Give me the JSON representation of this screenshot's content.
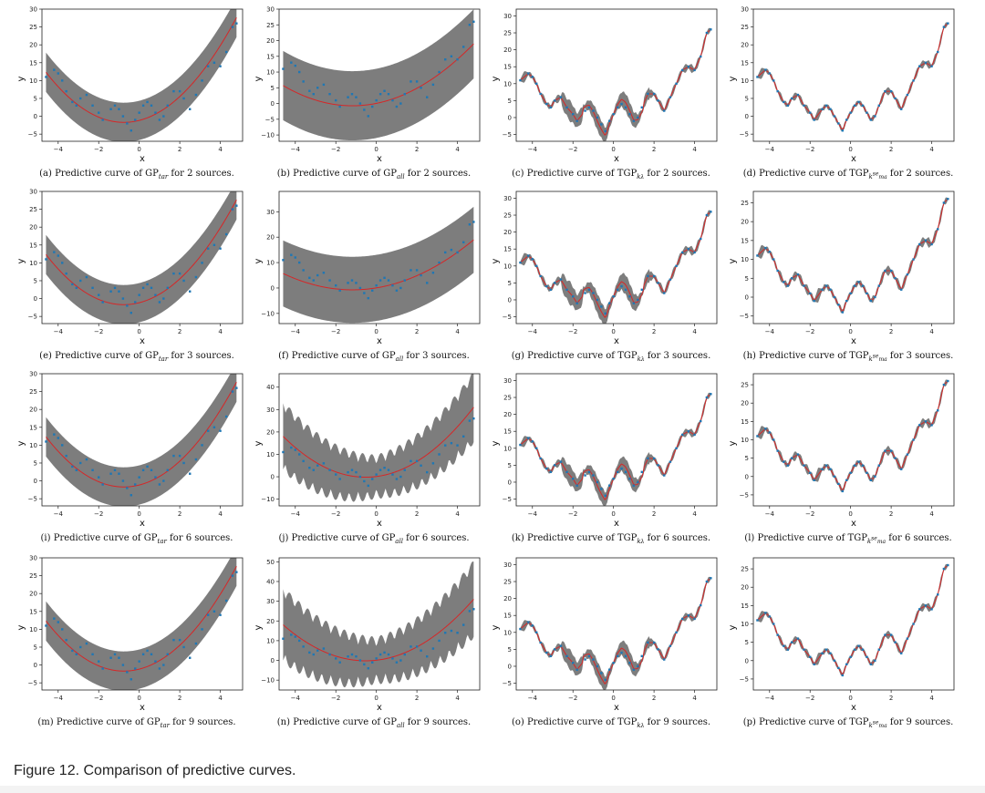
{
  "figure_caption": "Figure 12. Comparison of predictive curves.",
  "colors": {
    "band": "#6f6f6f",
    "mean": "#d62728",
    "points": "#1f77b4",
    "text": "#111111"
  },
  "chart_data": [
    {
      "id": "a",
      "type": "line",
      "caption": {
        "prefix": "(a) Predictive curve of GP",
        "sub": "tar",
        "sup": "",
        "suffix": " for 2 sources."
      },
      "xlabel": "x",
      "ylabel": "y",
      "xticks": [
        -4,
        -2,
        0,
        2,
        4
      ],
      "yticks": [
        -5,
        0,
        5,
        10,
        15,
        20,
        25,
        30
      ],
      "xlim": [
        -4.8,
        5.1
      ],
      "ylim": [
        -7,
        30
      ],
      "mean_model": "quad",
      "band": 5.5,
      "series": [
        {
          "name": "mean",
          "kind": "line"
        },
        {
          "name": "band",
          "kind": "area"
        },
        {
          "name": "data",
          "kind": "scatter"
        }
      ]
    },
    {
      "id": "b",
      "type": "line",
      "caption": {
        "prefix": "(b) Predictive curve of GP",
        "sub": "all",
        "sup": "",
        "suffix": " for 2 sources."
      },
      "xlabel": "x",
      "ylabel": "y",
      "xticks": [
        -4,
        -2,
        0,
        2,
        4
      ],
      "yticks": [
        -10,
        -5,
        0,
        5,
        10,
        15,
        20,
        25,
        30
      ],
      "xlim": [
        -4.8,
        5.1
      ],
      "ylim": [
        -12,
        30
      ],
      "mean_model": "quad_wide",
      "band": 11,
      "series": [
        {
          "name": "mean",
          "kind": "line"
        },
        {
          "name": "band",
          "kind": "area"
        },
        {
          "name": "data",
          "kind": "scatter"
        }
      ]
    },
    {
      "id": "c",
      "type": "line",
      "caption": {
        "prefix": "(c) Predictive curve of TGP",
        "sub": "k",
        "sup": "",
        "sub2": "λ",
        "suffix": " for 2 sources."
      },
      "xlabel": "x",
      "ylabel": "y",
      "xticks": [
        -4,
        -2,
        0,
        2,
        4
      ],
      "yticks": [
        -5,
        0,
        5,
        10,
        15,
        20,
        25,
        30
      ],
      "xlim": [
        -4.8,
        5.1
      ],
      "ylim": [
        -7,
        32
      ],
      "mean_model": "wiggle",
      "band": 2.5,
      "series": [
        {
          "name": "mean",
          "kind": "line"
        },
        {
          "name": "band",
          "kind": "area"
        },
        {
          "name": "data",
          "kind": "scatter"
        }
      ]
    },
    {
      "id": "d",
      "type": "line",
      "caption": {
        "prefix": "(d) Predictive curve of TGP",
        "sub": "k",
        "sup": "se",
        "sub2": "ma",
        "suffix": " for 2 sources."
      },
      "xlabel": "x",
      "ylabel": "y",
      "xticks": [
        -4,
        -2,
        0,
        2,
        4
      ],
      "yticks": [
        -5,
        0,
        5,
        10,
        15,
        20,
        25,
        30
      ],
      "xlim": [
        -4.8,
        5.1
      ],
      "ylim": [
        -7,
        30
      ],
      "mean_model": "fit",
      "band": 1.8,
      "series": [
        {
          "name": "mean",
          "kind": "line"
        },
        {
          "name": "band",
          "kind": "area"
        },
        {
          "name": "data",
          "kind": "scatter"
        }
      ]
    },
    {
      "id": "e",
      "type": "line",
      "caption": {
        "prefix": "(e) Predictive curve of GP",
        "sub": "tar",
        "sup": "",
        "suffix": " for 3 sources."
      },
      "xlabel": "x",
      "ylabel": "y",
      "xticks": [
        -4,
        -2,
        0,
        2,
        4
      ],
      "yticks": [
        -5,
        0,
        5,
        10,
        15,
        20,
        25,
        30
      ],
      "xlim": [
        -4.8,
        5.1
      ],
      "ylim": [
        -7,
        30
      ],
      "mean_model": "quad",
      "band": 5.5,
      "series": [
        {
          "name": "mean",
          "kind": "line"
        },
        {
          "name": "band",
          "kind": "area"
        },
        {
          "name": "data",
          "kind": "scatter"
        }
      ]
    },
    {
      "id": "f",
      "type": "line",
      "caption": {
        "prefix": "(f) Predictive curve of GP",
        "sub": "all",
        "sup": "",
        "suffix": " for 3 sources."
      },
      "xlabel": "x",
      "ylabel": "y",
      "xticks": [
        -4,
        -2,
        0,
        2,
        4
      ],
      "yticks": [
        -10,
        0,
        10,
        20,
        30
      ],
      "xlim": [
        -4.8,
        5.1
      ],
      "ylim": [
        -14,
        38
      ],
      "mean_model": "quad_wide",
      "band": 13,
      "series": [
        {
          "name": "mean",
          "kind": "line"
        },
        {
          "name": "band",
          "kind": "area"
        },
        {
          "name": "data",
          "kind": "scatter"
        }
      ]
    },
    {
      "id": "g",
      "type": "line",
      "caption": {
        "prefix": "(g) Predictive curve of TGP",
        "sub": "k",
        "sup": "",
        "sub2": "λ",
        "suffix": " for 3 sources."
      },
      "xlabel": "x",
      "ylabel": "y",
      "xticks": [
        -4,
        -2,
        0,
        2,
        4
      ],
      "yticks": [
        -5,
        0,
        5,
        10,
        15,
        20,
        25,
        30
      ],
      "xlim": [
        -4.8,
        5.1
      ],
      "ylim": [
        -7,
        32
      ],
      "mean_model": "wiggle",
      "band": 2.8,
      "series": [
        {
          "name": "mean",
          "kind": "line"
        },
        {
          "name": "band",
          "kind": "area"
        },
        {
          "name": "data",
          "kind": "scatter"
        }
      ]
    },
    {
      "id": "h",
      "type": "line",
      "caption": {
        "prefix": "(h) Predictive curve of TGP",
        "sub": "k",
        "sup": "se",
        "sub2": "ma",
        "suffix": " for 3 sources."
      },
      "xlabel": "x",
      "ylabel": "y",
      "xticks": [
        -4,
        -2,
        0,
        2,
        4
      ],
      "yticks": [
        -5,
        0,
        5,
        10,
        15,
        20,
        25
      ],
      "xlim": [
        -4.8,
        5.1
      ],
      "ylim": [
        -7,
        28
      ],
      "mean_model": "fit",
      "band": 2.2,
      "series": [
        {
          "name": "mean",
          "kind": "line"
        },
        {
          "name": "band",
          "kind": "area"
        },
        {
          "name": "data",
          "kind": "scatter"
        }
      ]
    },
    {
      "id": "i",
      "type": "line",
      "caption": {
        "prefix": "(i) Predictive curve of GP",
        "sub": "tar",
        "sup": "",
        "suffix": " for 6 sources."
      },
      "xlabel": "x",
      "ylabel": "y",
      "xticks": [
        -4,
        -2,
        0,
        2,
        4
      ],
      "yticks": [
        -5,
        0,
        5,
        10,
        15,
        20,
        25,
        30
      ],
      "xlim": [
        -4.8,
        5.1
      ],
      "ylim": [
        -7,
        30
      ],
      "mean_model": "quad",
      "band": 5.5,
      "series": [
        {
          "name": "mean",
          "kind": "line"
        },
        {
          "name": "band",
          "kind": "area"
        },
        {
          "name": "data",
          "kind": "scatter"
        }
      ]
    },
    {
      "id": "j",
      "type": "line",
      "caption": {
        "prefix": "(j) Predictive curve of GP",
        "sub": "all",
        "sup": "",
        "suffix": " for 6 sources."
      },
      "xlabel": "x",
      "ylabel": "y",
      "xticks": [
        -4,
        -2,
        0,
        2,
        4
      ],
      "yticks": [
        -10,
        0,
        10,
        20,
        30,
        40
      ],
      "xlim": [
        -4.8,
        5.1
      ],
      "ylim": [
        -13,
        46
      ],
      "mean_model": "quad_rough",
      "band": 9,
      "series": [
        {
          "name": "mean",
          "kind": "line"
        },
        {
          "name": "band",
          "kind": "area"
        },
        {
          "name": "data",
          "kind": "scatter"
        }
      ]
    },
    {
      "id": "k",
      "type": "line",
      "caption": {
        "prefix": "(k) Predictive curve of TGP",
        "sub": "k",
        "sup": "",
        "sub2": "λ",
        "suffix": " for 6 sources."
      },
      "xlabel": "x",
      "ylabel": "y",
      "xticks": [
        -4,
        -2,
        0,
        2,
        4
      ],
      "yticks": [
        -5,
        0,
        5,
        10,
        15,
        20,
        25,
        30
      ],
      "xlim": [
        -4.8,
        5.1
      ],
      "ylim": [
        -7,
        32
      ],
      "mean_model": "wiggle",
      "band": 2.4,
      "series": [
        {
          "name": "mean",
          "kind": "line"
        },
        {
          "name": "band",
          "kind": "area"
        },
        {
          "name": "data",
          "kind": "scatter"
        }
      ]
    },
    {
      "id": "l",
      "type": "line",
      "caption": {
        "prefix": "(l) Predictive curve of TGP",
        "sub": "k",
        "sup": "se",
        "sub2": "ma",
        "suffix": " for 6 sources."
      },
      "xlabel": "x",
      "ylabel": "y",
      "xticks": [
        -4,
        -2,
        0,
        2,
        4
      ],
      "yticks": [
        -5,
        0,
        5,
        10,
        15,
        20,
        25
      ],
      "xlim": [
        -4.8,
        5.1
      ],
      "ylim": [
        -8,
        28
      ],
      "mean_model": "fit",
      "band": 2.2,
      "series": [
        {
          "name": "mean",
          "kind": "line"
        },
        {
          "name": "band",
          "kind": "area"
        },
        {
          "name": "data",
          "kind": "scatter"
        }
      ]
    },
    {
      "id": "m",
      "type": "line",
      "caption": {
        "prefix": "(m) Predictive curve of GP",
        "sub": "tar",
        "sup": "",
        "suffix": " for 9 sources."
      },
      "xlabel": "x",
      "ylabel": "y",
      "xticks": [
        -4,
        -2,
        0,
        2,
        4
      ],
      "yticks": [
        -5,
        0,
        5,
        10,
        15,
        20,
        25,
        30
      ],
      "xlim": [
        -4.8,
        5.1
      ],
      "ylim": [
        -7,
        30
      ],
      "mean_model": "quad",
      "band": 5.5,
      "series": [
        {
          "name": "mean",
          "kind": "line"
        },
        {
          "name": "band",
          "kind": "area"
        },
        {
          "name": "data",
          "kind": "scatter"
        }
      ]
    },
    {
      "id": "n",
      "type": "line",
      "caption": {
        "prefix": "(n) Predictive curve of GP",
        "sub": "all",
        "sup": "",
        "suffix": " for 9 sources."
      },
      "xlabel": "x",
      "ylabel": "y",
      "xticks": [
        -4,
        -2,
        0,
        2,
        4
      ],
      "yticks": [
        -10,
        0,
        10,
        20,
        30,
        40,
        50
      ],
      "xlim": [
        -4.8,
        5.1
      ],
      "ylim": [
        -15,
        52
      ],
      "mean_model": "quad_rough",
      "band": 11,
      "series": [
        {
          "name": "mean",
          "kind": "line"
        },
        {
          "name": "band",
          "kind": "area"
        },
        {
          "name": "data",
          "kind": "scatter"
        }
      ]
    },
    {
      "id": "o",
      "type": "line",
      "caption": {
        "prefix": "(o) Predictive curve of TGP",
        "sub": "k",
        "sup": "",
        "sub2": "λ",
        "suffix": " for 9 sources."
      },
      "xlabel": "x",
      "ylabel": "y",
      "xticks": [
        -4,
        -2,
        0,
        2,
        4
      ],
      "yticks": [
        -5,
        0,
        5,
        10,
        15,
        20,
        25,
        30
      ],
      "xlim": [
        -4.8,
        5.1
      ],
      "ylim": [
        -7,
        32
      ],
      "mean_model": "wiggle",
      "band": 2.4,
      "series": [
        {
          "name": "mean",
          "kind": "line"
        },
        {
          "name": "band",
          "kind": "area"
        },
        {
          "name": "data",
          "kind": "scatter"
        }
      ]
    },
    {
      "id": "p",
      "type": "line",
      "caption": {
        "prefix": "(p) Predictive curve of TGP",
        "sub": "k",
        "sup": "se",
        "sub2": "ma",
        "suffix": " for 9 sources."
      },
      "xlabel": "x",
      "ylabel": "y",
      "xticks": [
        -4,
        -2,
        0,
        2,
        4
      ],
      "yticks": [
        -5,
        0,
        5,
        10,
        15,
        20,
        25
      ],
      "xlim": [
        -4.8,
        5.1
      ],
      "ylim": [
        -8,
        28
      ],
      "mean_model": "fit",
      "band": 1.8,
      "series": [
        {
          "name": "mean",
          "kind": "line"
        },
        {
          "name": "band",
          "kind": "area"
        },
        {
          "name": "data",
          "kind": "scatter"
        }
      ]
    }
  ],
  "observations": {
    "x": [
      -4.6,
      -4.2,
      -4.0,
      -3.8,
      -3.6,
      -3.3,
      -3.1,
      -2.9,
      -2.6,
      -2.3,
      -2.0,
      -1.8,
      -1.4,
      -1.2,
      -1.0,
      -0.8,
      -0.6,
      -0.4,
      -0.2,
      0.0,
      0.2,
      0.4,
      0.6,
      0.8,
      1.0,
      1.2,
      1.4,
      1.7,
      2.0,
      2.2,
      2.5,
      2.8,
      3.1,
      3.4,
      3.7,
      4.0,
      4.3,
      4.6,
      4.8
    ],
    "y": [
      11,
      13,
      12,
      10,
      7,
      4,
      3,
      5,
      6,
      3,
      1,
      -1,
      2,
      3,
      2,
      0,
      -2,
      -4,
      -1,
      1,
      3,
      4,
      3,
      1,
      -1,
      0,
      3,
      7,
      7,
      5,
      2,
      6,
      10,
      14,
      15,
      14,
      18,
      25,
      26
    ]
  }
}
